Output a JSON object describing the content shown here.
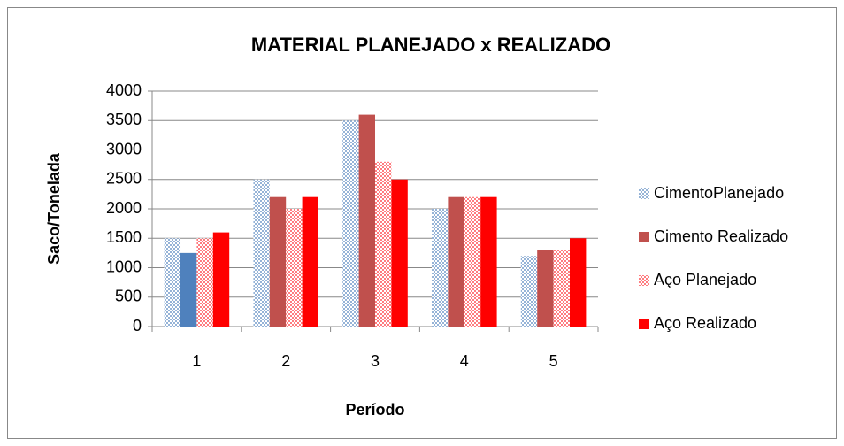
{
  "chart_data": {
    "type": "bar",
    "title": "MATERIAL PLANEJADO x REALIZADO",
    "x_label": "Período",
    "y_label": "Saco/Tonelada",
    "categories": [
      "1",
      "2",
      "3",
      "4",
      "5"
    ],
    "series": [
      {
        "name": "CimentoPlanejado",
        "color": "#95b3d7",
        "pattern": "checker",
        "values": [
          1500,
          2500,
          3500,
          2000,
          1200
        ]
      },
      {
        "name": "Cimento Realizado",
        "color": "#c0504d",
        "colors": [
          "#4f81bd",
          "#c0504d",
          "#c0504d",
          "#c0504d",
          "#c0504d"
        ],
        "values": [
          1250,
          2200,
          3600,
          2200,
          1300
        ]
      },
      {
        "name": "Aço Planejado",
        "color": "#ff7c80",
        "pattern": "checker",
        "values": [
          1500,
          2000,
          2800,
          2200,
          1300
        ]
      },
      {
        "name": "Aço Realizado",
        "color": "#ff0000",
        "values": [
          1600,
          2200,
          2500,
          2200,
          1500
        ]
      }
    ],
    "ylim": [
      0,
      4000
    ],
    "yticks": [
      0,
      500,
      1000,
      1500,
      2000,
      2500,
      3000,
      3500,
      4000
    ],
    "grid": true,
    "legend": "right"
  }
}
